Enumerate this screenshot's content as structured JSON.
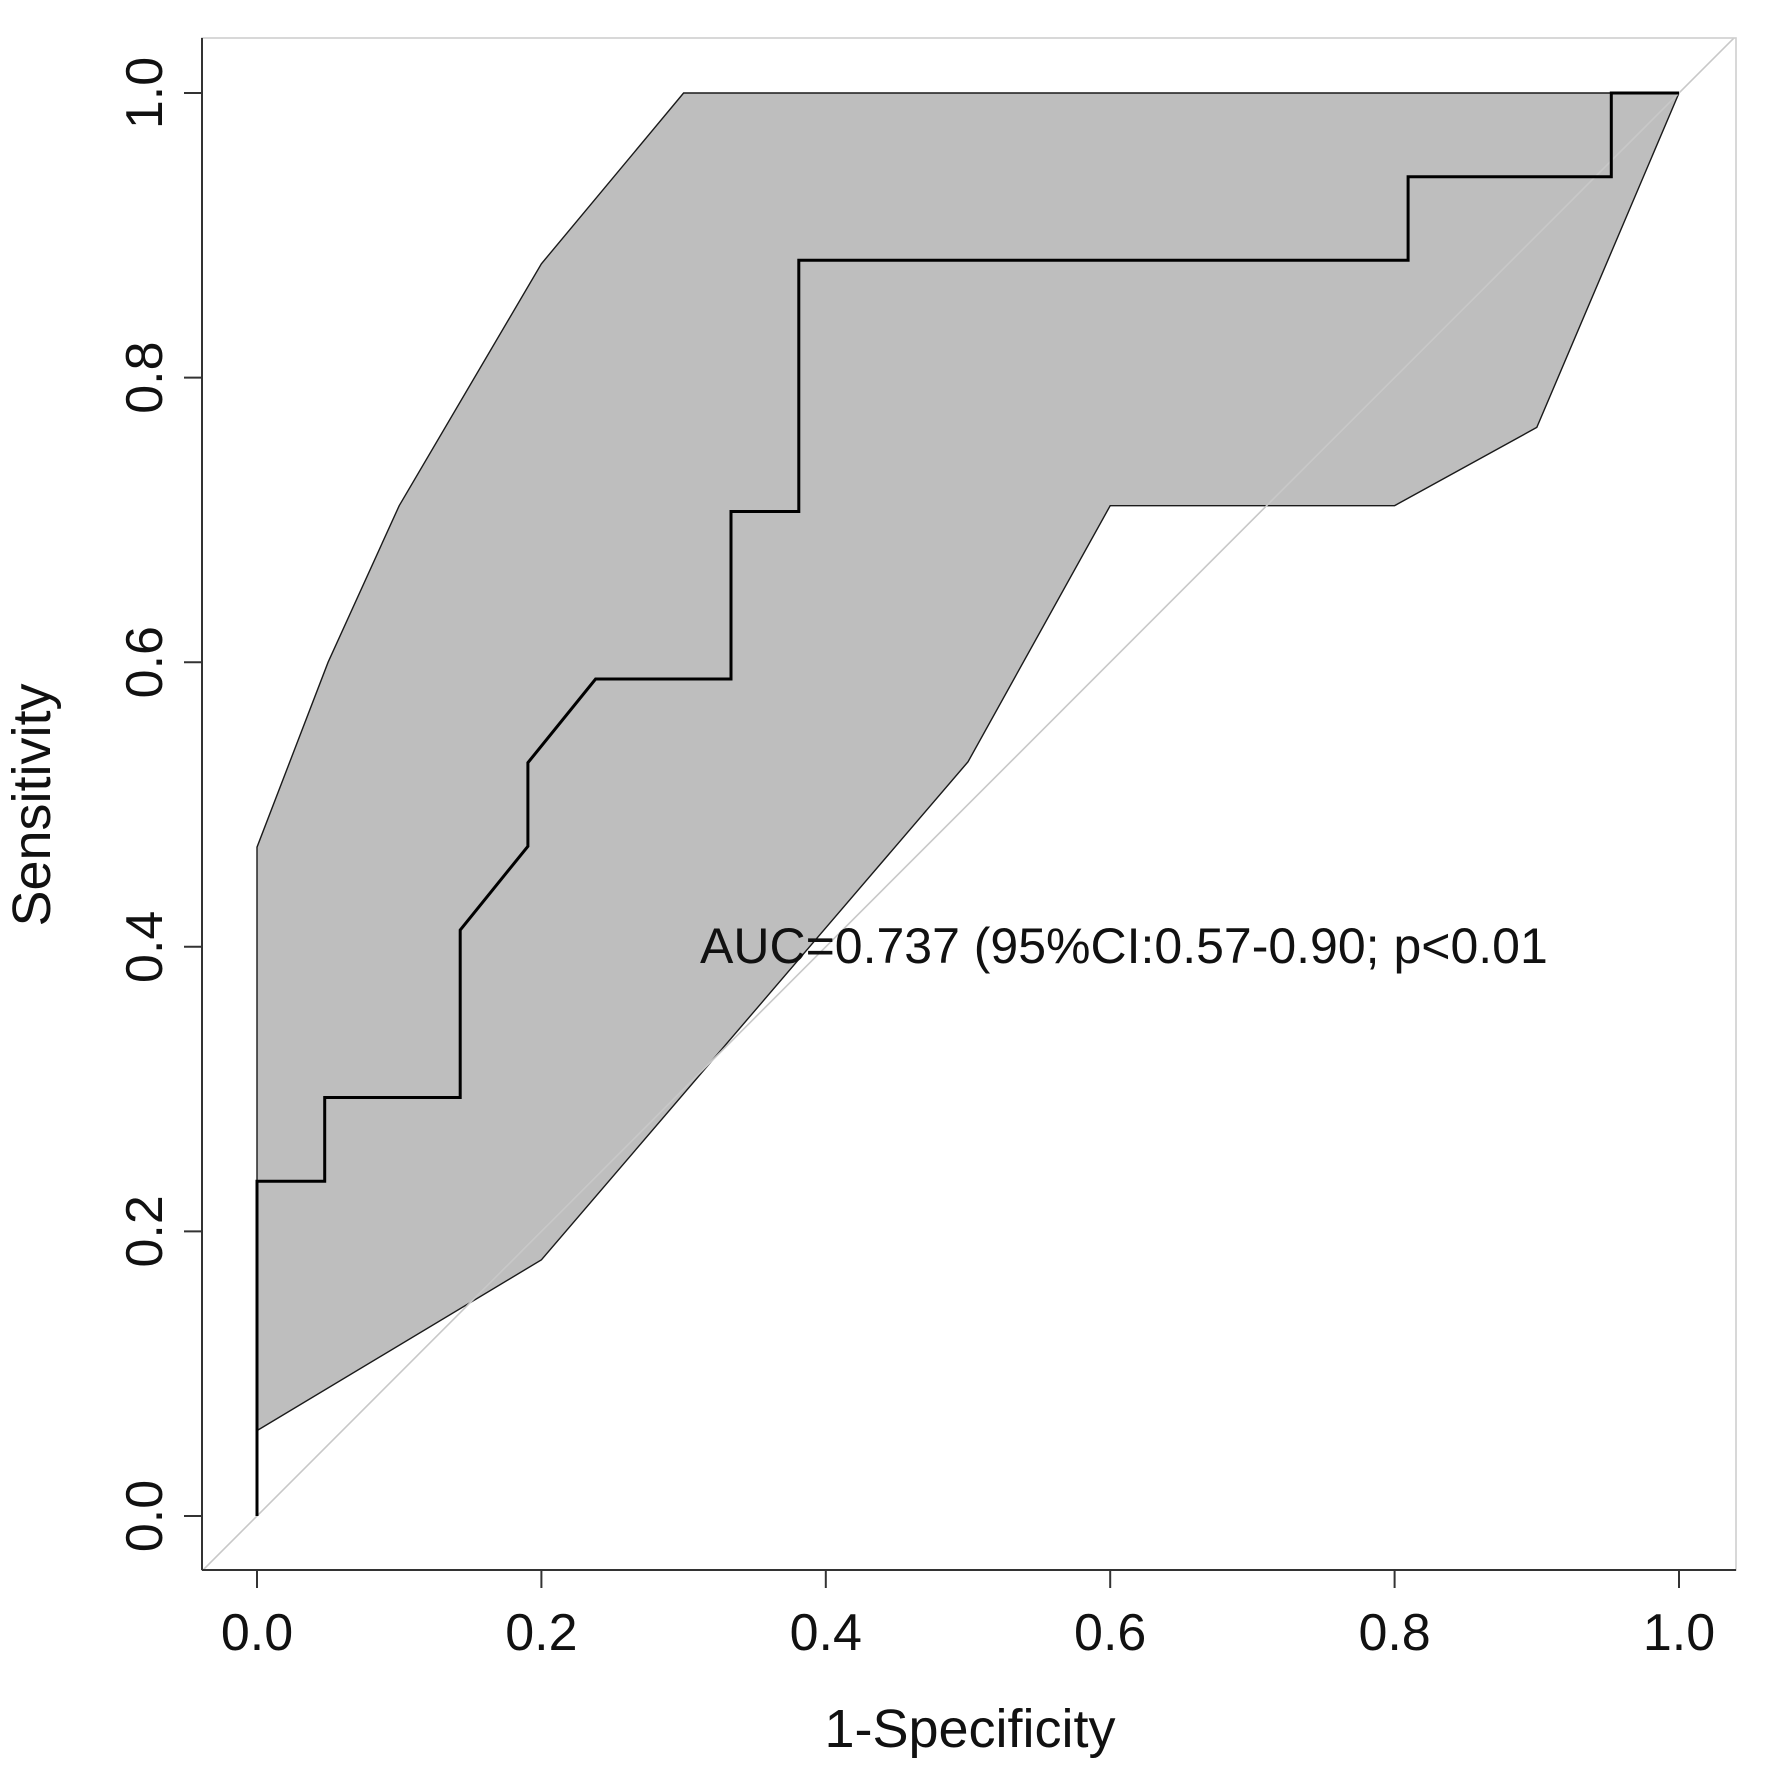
{
  "chart_data": {
    "type": "line",
    "title": "",
    "xlabel": "1-Specificity",
    "ylabel": "Sensitivity",
    "xlim": [
      0.0,
      1.0
    ],
    "ylim": [
      0.0,
      1.0
    ],
    "x_ticks": [
      "0.0",
      "0.2",
      "0.4",
      "0.6",
      "0.8",
      "1.0"
    ],
    "y_ticks": [
      "0.0",
      "0.2",
      "0.4",
      "0.6",
      "0.8",
      "1.0"
    ],
    "grid": false,
    "legend": "none",
    "annotation": "AUC=0.737 (95%CI:0.57-0.90; p<0.01",
    "reference_line": {
      "name": "chance diagonal",
      "x": [
        0.0,
        1.0
      ],
      "y": [
        0.0,
        1.0
      ],
      "color": "#c8c8c8"
    },
    "confidence_band": {
      "name": "95% CI band",
      "fill": "#bebebe",
      "upper": {
        "x": [
          0.0,
          0.0,
          0.05,
          0.1,
          0.2,
          0.3,
          1.0
        ],
        "y": [
          0.06,
          0.47,
          0.6,
          0.71,
          0.88,
          1.0,
          1.0
        ]
      },
      "lower": {
        "x": [
          0.0,
          0.2,
          0.5,
          0.6,
          0.8,
          0.9,
          1.0
        ],
        "y": [
          0.06,
          0.18,
          0.53,
          0.71,
          0.71,
          0.765,
          1.0
        ]
      }
    },
    "series": [
      {
        "name": "ROC curve",
        "color": "#000000",
        "x": [
          0.0,
          0.0,
          0.0476,
          0.0476,
          0.1429,
          0.1429,
          0.1905,
          0.1905,
          0.2381,
          0.3333,
          0.3333,
          0.381,
          0.381,
          0.8095,
          0.8095,
          0.9524,
          0.9524,
          1.0
        ],
        "y": [
          0.0,
          0.2353,
          0.2353,
          0.2941,
          0.2941,
          0.4118,
          0.4706,
          0.5294,
          0.5882,
          0.5882,
          0.7059,
          0.7059,
          0.8824,
          0.8824,
          0.9412,
          0.9412,
          1.0,
          1.0
        ]
      }
    ]
  }
}
